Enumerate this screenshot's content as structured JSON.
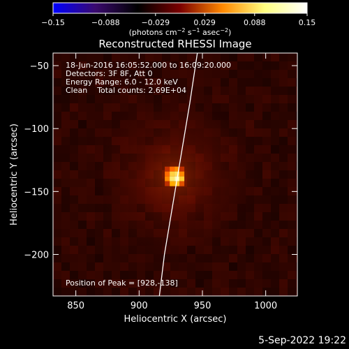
{
  "chart_data": {
    "type": "heatmap",
    "title": "Reconstructed RHESSI Image",
    "xlabel": "Heliocentric X (arcsec)",
    "ylabel": "Heliocentric Y (arcsec)",
    "xlim": [
      832,
      1025
    ],
    "ylim": [
      -233,
      -40
    ],
    "x_ticks": [
      850,
      900,
      950,
      1000
    ],
    "y_ticks": [
      -50,
      -100,
      -150,
      -200
    ],
    "x_tick_labels": [
      "850",
      "900",
      "950",
      "1000"
    ],
    "y_tick_labels": [
      "−50",
      "−100",
      "−150",
      "−200"
    ],
    "colorbar": {
      "ticks": [
        -0.15,
        -0.088,
        -0.029,
        0.029,
        0.088,
        0.15
      ],
      "tick_labels": [
        "−0.15",
        "−0.088",
        "−0.029",
        "0.029",
        "0.088",
        "0.15"
      ],
      "min": -0.15,
      "max": 0.15,
      "colors": [
        "#0000ff",
        "#3a0a6e",
        "#000000",
        "#7a0000",
        "#ff8800",
        "#ffff80",
        "#ffffff"
      ],
      "label_main": "(photons cm",
      "label_sup1": "−2",
      "label_mid": " s",
      "label_sup2": "−1",
      "label_mid2": " asec",
      "label_sup3": "−2",
      "label_end": ")"
    },
    "annotations": [
      "18-Jun-2016 16:05:52.000 to 16:09:20.000",
      "Detectors: 3F 8F, Att 0",
      "Energy Range: 6.0 - 12.0 keV",
      "Clean    Total counts: 2.69E+04"
    ],
    "peak_label": "Position of Peak = [928,-138]",
    "peak": {
      "x": 928,
      "y": -138,
      "value": 0.15
    },
    "limb_curve": [
      [
        916,
        -233
      ],
      [
        920,
        -200
      ],
      [
        925,
        -170
      ],
      [
        930,
        -140
      ],
      [
        935,
        -110
      ],
      [
        940,
        -80
      ],
      [
        946,
        -40
      ]
    ]
  },
  "footer": {
    "date": "5-Sep-2022 19:22"
  }
}
